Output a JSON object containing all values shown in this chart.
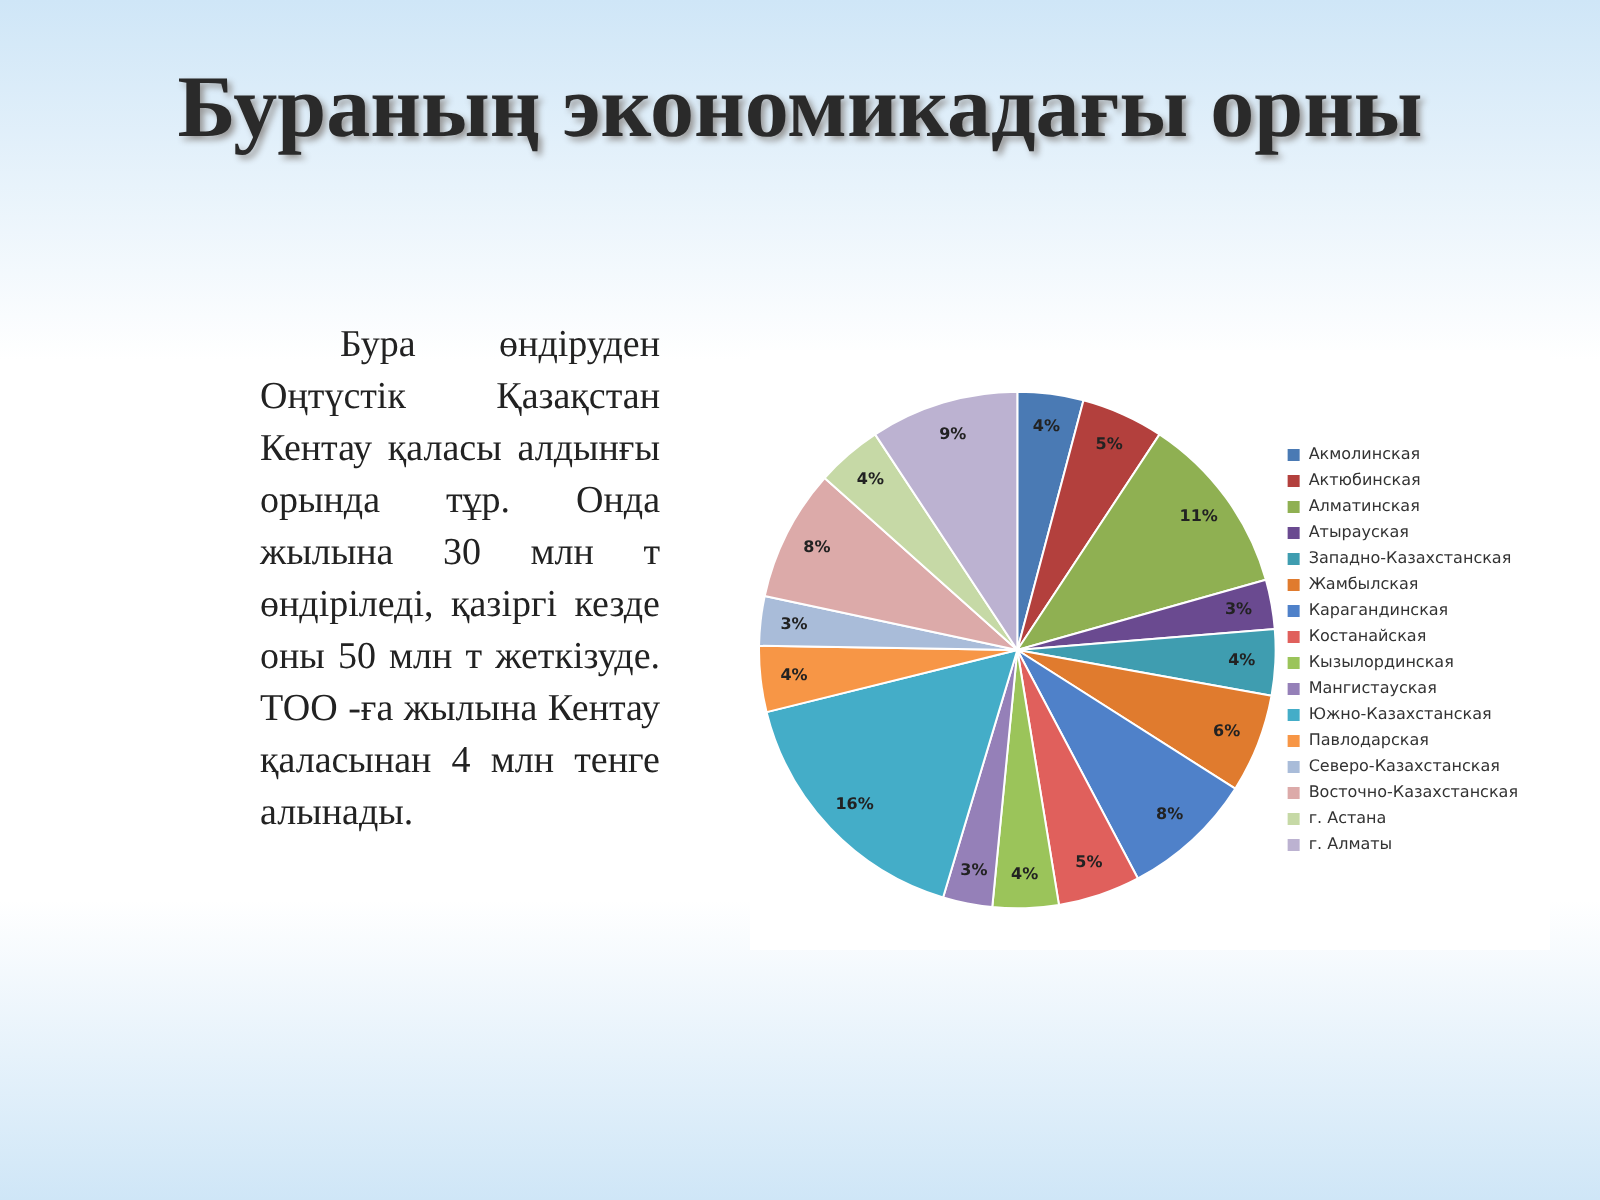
{
  "chart_data": {
    "type": "pie",
    "title": "Бураның экономикадағы орны",
    "annotations": [
      "Бура өндіруден Оңтүстік Қазақстан Кентау қаласы алдынғы орында тұр. Онда жылына 30 млн т өндіріледі, қазіргі кезде оны 50 млн т жеткізуде. ТОО -ға жылына Кентау қаласынан 4 млн тенге алынады."
    ],
    "categories": [
      "Акмолинская",
      "Актюбинская",
      "Алматинская",
      "Атырауская",
      "Западно-Казахстанская",
      "Жамбылская",
      "Карагандинская",
      "Костанайская",
      "Кызылординская",
      "Мангистауская",
      "Южно-Казахстанская",
      "Павлодарская",
      "Северо-Казахстанская",
      "Восточно-Казахстанская",
      "г. Астана",
      "г. Алматы"
    ],
    "values": [
      4,
      5,
      11,
      3,
      4,
      6,
      8,
      5,
      4,
      3,
      16,
      4,
      3,
      8,
      4,
      9
    ],
    "value_labels": [
      "4%",
      "5%",
      "11%",
      "3%",
      "4%",
      "6%",
      "8%",
      "5%",
      "4%",
      "3%",
      "16%",
      "4%",
      "3%",
      "8%",
      "4%",
      "9%"
    ],
    "colors": [
      "#4a7ab4",
      "#b3403d",
      "#8fb052",
      "#6a4a90",
      "#3f9db0",
      "#e07b2e",
      "#4f81c9",
      "#e0605c",
      "#9bc45a",
      "#9580b8",
      "#44adc8",
      "#f79646",
      "#a9bcd9",
      "#dcaaa9",
      "#c6d9a6",
      "#bcb2d1"
    ],
    "legend": "right"
  }
}
